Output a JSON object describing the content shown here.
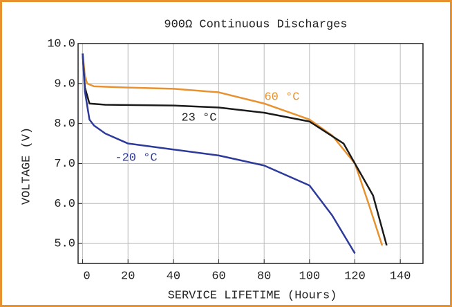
{
  "chart_data": {
    "type": "line",
    "title": "900Ω Continuous Discharges",
    "xlabel": "SERVICE LIFETIME (Hours)",
    "ylabel": "VOLTAGE (V)",
    "xlim": [
      -2,
      150
    ],
    "ylim": [
      4.5,
      10
    ],
    "xticks": [
      0,
      20,
      40,
      60,
      80,
      100,
      120,
      140
    ],
    "yticks": [
      {
        "value": 5,
        "label": "5.0"
      },
      {
        "value": 6,
        "label": "6.0"
      },
      {
        "value": 7,
        "label": "7.0"
      },
      {
        "value": 8,
        "label": "8.0"
      },
      {
        "value": 9,
        "label": "9.0"
      },
      {
        "value": 10,
        "label": "10.0"
      }
    ],
    "grid": true,
    "series": [
      {
        "name": "60 °C",
        "color": "#e8912f",
        "x": [
          0,
          1,
          2,
          5,
          20,
          40,
          60,
          80,
          100,
          110,
          120,
          126,
          132
        ],
        "values": [
          9.75,
          9.2,
          9.0,
          8.93,
          8.9,
          8.87,
          8.78,
          8.5,
          8.1,
          7.7,
          7.0,
          6.0,
          4.95
        ]
      },
      {
        "name": "23 °C",
        "color": "#1a1a1a",
        "x": [
          0,
          1,
          3,
          10,
          40,
          60,
          80,
          100,
          115,
          120,
          128,
          134
        ],
        "values": [
          9.75,
          8.9,
          8.5,
          8.47,
          8.45,
          8.4,
          8.27,
          8.05,
          7.5,
          7.0,
          6.2,
          4.95
        ]
      },
      {
        "name": "-20 °C",
        "color": "#2e3a9a",
        "x": [
          0,
          1,
          3,
          5,
          10,
          20,
          40,
          60,
          80,
          100,
          110,
          120
        ],
        "values": [
          9.75,
          8.8,
          8.1,
          7.95,
          7.75,
          7.5,
          7.35,
          7.2,
          6.95,
          6.45,
          5.7,
          4.75
        ]
      }
    ]
  }
}
